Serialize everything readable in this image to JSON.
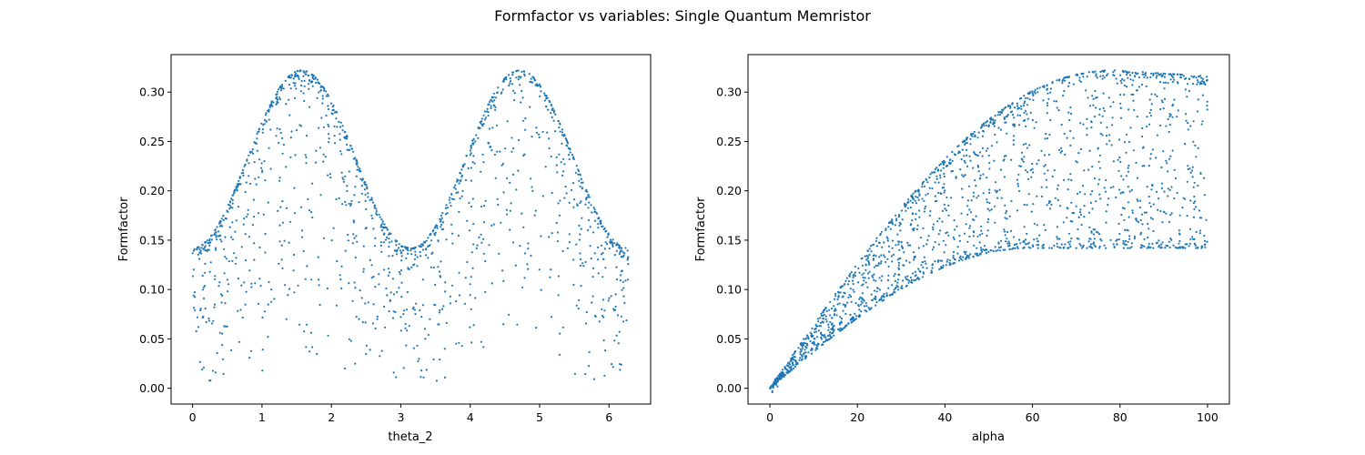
{
  "figure": {
    "title": "Formfactor vs variables: Single Quantum Memristor"
  },
  "colors": {
    "point": "#1f77b4",
    "axes": "#000000",
    "background": "#ffffff"
  },
  "chart_data": [
    {
      "type": "scatter",
      "xlabel": "theta_2",
      "ylabel": "Formfactor",
      "xlim": [
        -0.31,
        6.6
      ],
      "ylim": [
        -0.016,
        0.338
      ],
      "xticks": [
        0,
        1,
        2,
        3,
        4,
        5,
        6
      ],
      "xtick_labels": [
        "0",
        "1",
        "2",
        "3",
        "4",
        "5",
        "6"
      ],
      "yticks": [
        0.0,
        0.05,
        0.1,
        0.15,
        0.2,
        0.25,
        0.3
      ],
      "ytick_labels": [
        "0.00",
        "0.05",
        "0.10",
        "0.15",
        "0.20",
        "0.25",
        "0.30"
      ],
      "grid": false,
      "legend": "none",
      "description": "Points fill region bounded above by envelope ~0.14 + 0.18*sin^2(theta_2) (peaks ~0.32 at theta_2≈1.55 and ≈4.7, minima ~0.14 at 0, 3.14, 6.28); dense along the upper envelope, sparse down to 0.",
      "x_range": [
        0,
        6.28
      ],
      "n_points": 1500
    },
    {
      "type": "scatter",
      "xlabel": "alpha",
      "ylabel": "Formfactor",
      "xlim": [
        -5,
        105
      ],
      "ylim": [
        -0.016,
        0.338
      ],
      "xticks": [
        0,
        20,
        40,
        60,
        80,
        100
      ],
      "xtick_labels": [
        "0",
        "20",
        "40",
        "60",
        "80",
        "100"
      ],
      "yticks": [
        0.0,
        0.05,
        0.1,
        0.15,
        0.2,
        0.25,
        0.3
      ],
      "ytick_labels": [
        "0.00",
        "0.05",
        "0.10",
        "0.15",
        "0.20",
        "0.25",
        "0.30"
      ],
      "grid": false,
      "legend": "none",
      "description": "Points fill a band between lower curve rising from 0 to ~0.14 (alpha≈55) and upper curve rising from 0 to ~0.32 (alpha≈75); dense along both boundary curves.",
      "x_range": [
        0,
        100
      ],
      "n_points": 2000
    }
  ]
}
